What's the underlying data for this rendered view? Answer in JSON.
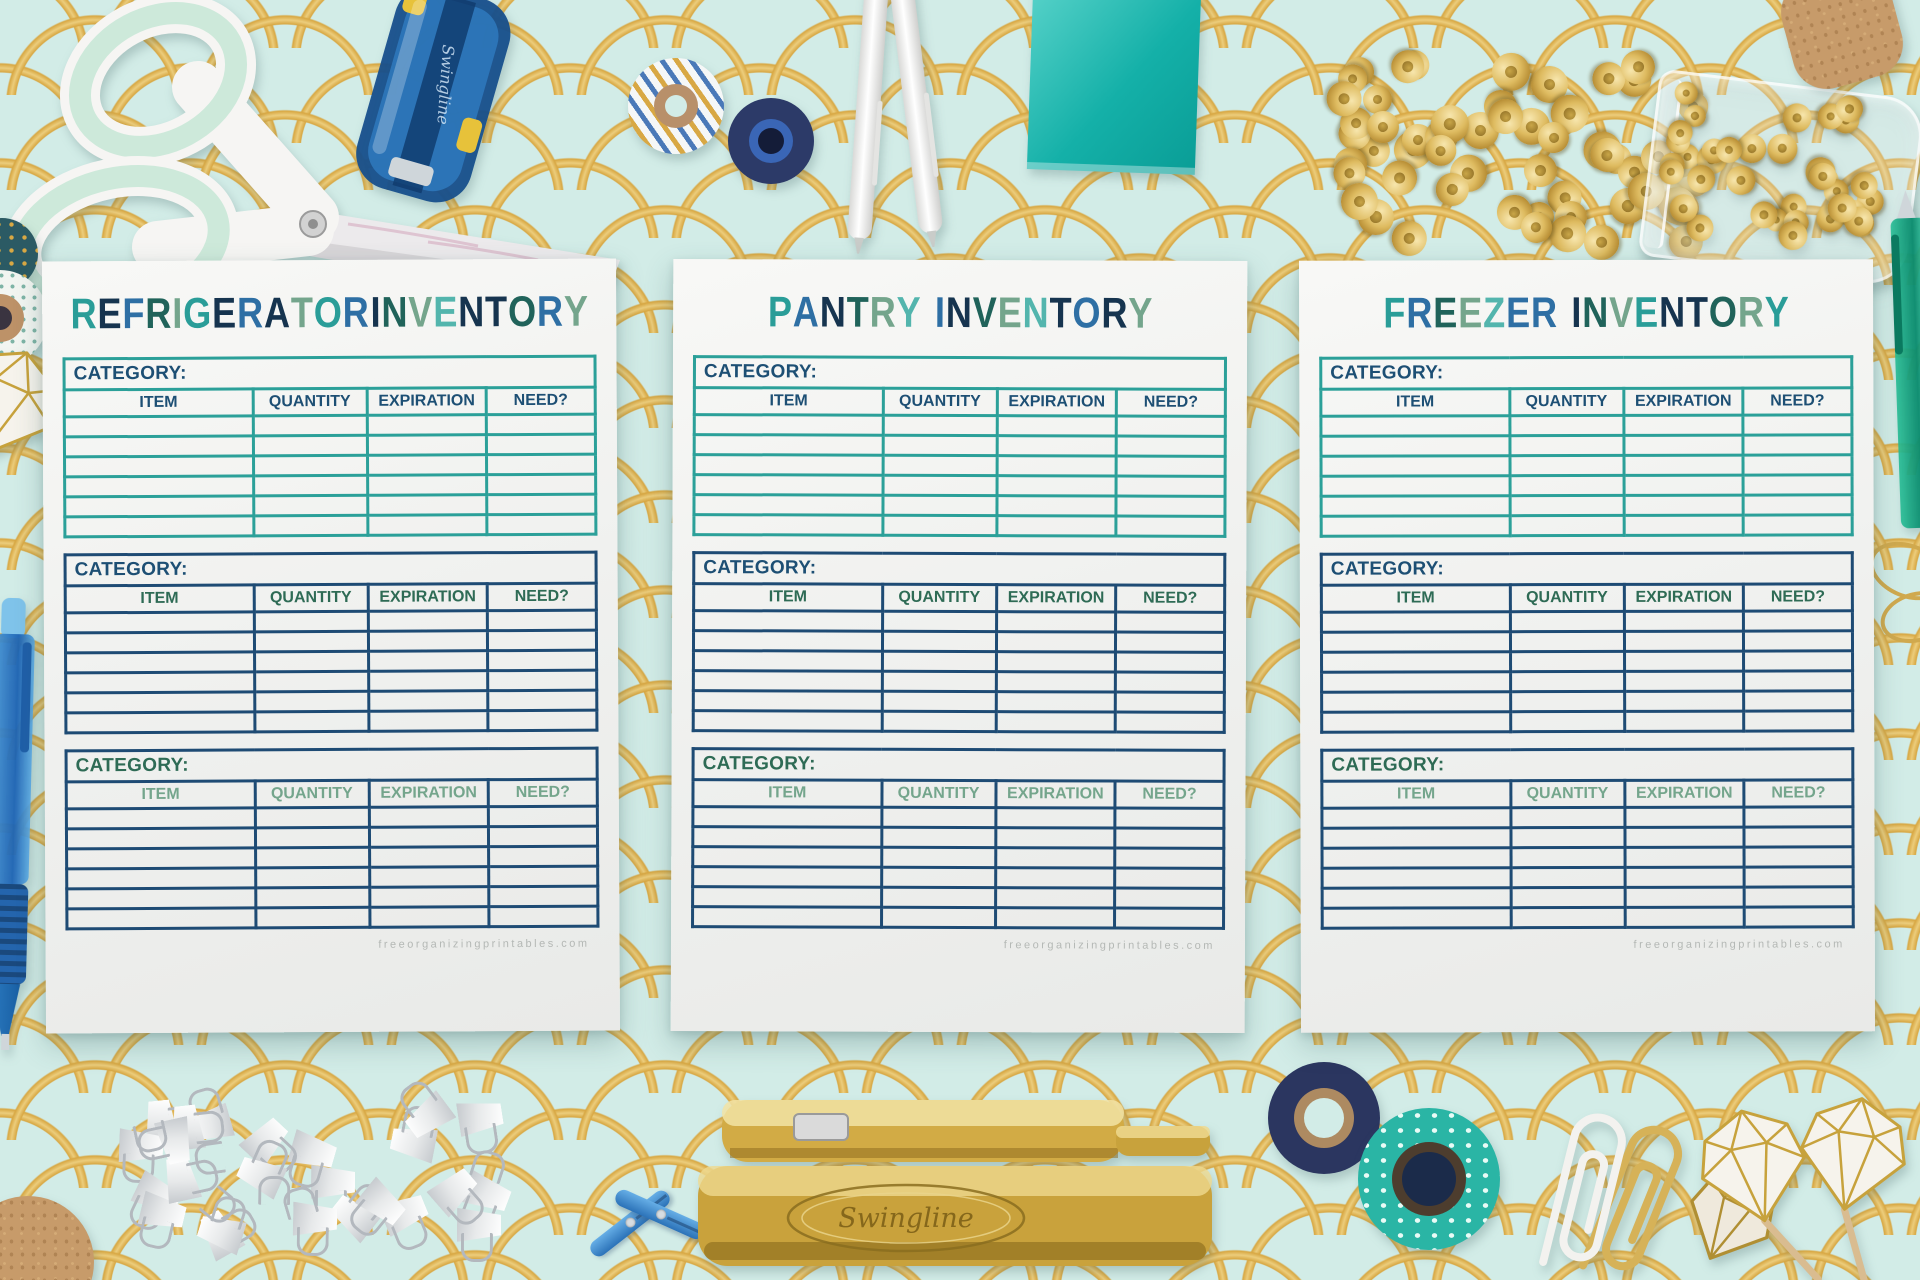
{
  "page": {
    "background_color": "#d2ece7",
    "scallop_gold": "#d8a844",
    "paper_color": "#f3f4f2"
  },
  "palette": {
    "t": "#2a9d98",
    "n": "#16344f",
    "b": "#2e6fa4",
    "g": "#20635a",
    "s": "#74a58c",
    "a": "#53b5ad"
  },
  "form": {
    "category_label": "CATEGORY:",
    "columns": [
      "ITEM",
      "QUANTITY",
      "EXPIRATION",
      "NEED?"
    ],
    "column_widths": [
      "35.5%",
      "21.5%",
      "22.5%",
      "20.5%"
    ],
    "rows_per_table": 6,
    "footer": "freeorganizingprintables.com",
    "colors": {
      "border_teal": "#2ba099",
      "border_navy": "#1e4b74",
      "text_navy": "#1d4f74",
      "text_green": "#2e6b55",
      "text_sage": "#74a58c",
      "footer_gray": "#b4b8b5"
    }
  },
  "sheets": [
    {
      "name": "refrigerator-inventory",
      "title": [
        [
          "R",
          "t"
        ],
        [
          "E",
          "n"
        ],
        [
          "F",
          "b"
        ],
        [
          "R",
          "g"
        ],
        [
          "I",
          "s"
        ],
        [
          "G",
          "t"
        ],
        [
          "E",
          "n"
        ],
        [
          "R",
          "b"
        ],
        [
          "A",
          "n"
        ],
        [
          "T",
          "s"
        ],
        [
          "O",
          "t"
        ],
        [
          "R",
          "b"
        ],
        [
          " "
        ],
        [
          "I",
          "n"
        ],
        [
          "N",
          "g"
        ],
        [
          "V",
          "s"
        ],
        [
          "E",
          "a"
        ],
        [
          "N",
          "n"
        ],
        [
          "T",
          "n"
        ],
        [
          "O",
          "g"
        ],
        [
          "R",
          "b"
        ],
        [
          "Y",
          "s"
        ]
      ],
      "tables": [
        {
          "border": "border_teal",
          "category": "text_navy",
          "header": "text_navy"
        },
        {
          "border": "border_navy",
          "category": "text_navy",
          "header": "text_green"
        },
        {
          "border": "border_navy",
          "category": "text_green",
          "header": "text_sage"
        }
      ]
    },
    {
      "name": "pantry-inventory",
      "title": [
        [
          "P",
          "t"
        ],
        [
          "A",
          "b"
        ],
        [
          "N",
          "n"
        ],
        [
          "T",
          "g"
        ],
        [
          "R",
          "s"
        ],
        [
          "Y",
          "a"
        ],
        [
          " "
        ],
        [
          "I",
          "b"
        ],
        [
          "N",
          "n"
        ],
        [
          "V",
          "g"
        ],
        [
          "E",
          "s"
        ],
        [
          "N",
          "a"
        ],
        [
          "T",
          "n"
        ],
        [
          "O",
          "b"
        ],
        [
          "R",
          "n"
        ],
        [
          "Y",
          "s"
        ]
      ],
      "tables": [
        {
          "border": "border_teal",
          "category": "text_navy",
          "header": "text_navy"
        },
        {
          "border": "border_navy",
          "category": "text_navy",
          "header": "text_green"
        },
        {
          "border": "border_navy",
          "category": "text_green",
          "header": "text_sage"
        }
      ]
    },
    {
      "name": "freezer-inventory",
      "title": [
        [
          "F",
          "t"
        ],
        [
          "R",
          "b"
        ],
        [
          "E",
          "g"
        ],
        [
          "E",
          "s"
        ],
        [
          "Z",
          "a"
        ],
        [
          "E",
          "b"
        ],
        [
          "R",
          "b"
        ],
        [
          " "
        ],
        [
          "I",
          "n"
        ],
        [
          "N",
          "g"
        ],
        [
          "V",
          "s"
        ],
        [
          "E",
          "t"
        ],
        [
          "N",
          "n"
        ],
        [
          "T",
          "n"
        ],
        [
          "O",
          "g"
        ],
        [
          "R",
          "s"
        ],
        [
          "Y",
          "t"
        ]
      ],
      "tables": [
        {
          "border": "border_teal",
          "category": "text_navy",
          "header": "text_navy"
        },
        {
          "border": "border_navy",
          "category": "text_navy",
          "header": "text_green"
        },
        {
          "border": "border_navy",
          "category": "text_green",
          "header": "text_sage"
        }
      ]
    }
  ],
  "decor": {
    "gold_stapler_brand": "Swingline",
    "objects": [
      "scissors",
      "blue-stapler",
      "washi-tape-striped",
      "washi-tape-navy",
      "white-pens",
      "sticky-note-teal",
      "gold-push-pins",
      "push-pin-jar",
      "cork-stopper",
      "washi-tape-dark-partial",
      "washi-tape-white-partial",
      "diamond-pick-partial",
      "blue-pen",
      "cork-ball",
      "binder-clips",
      "blue-clothespins",
      "gold-stapler",
      "washi-tape-navy-glitter",
      "washi-tape-teal-leaf",
      "jumbo-paper-clips",
      "diamond-picks",
      "green-pen",
      "gold-clips"
    ]
  }
}
